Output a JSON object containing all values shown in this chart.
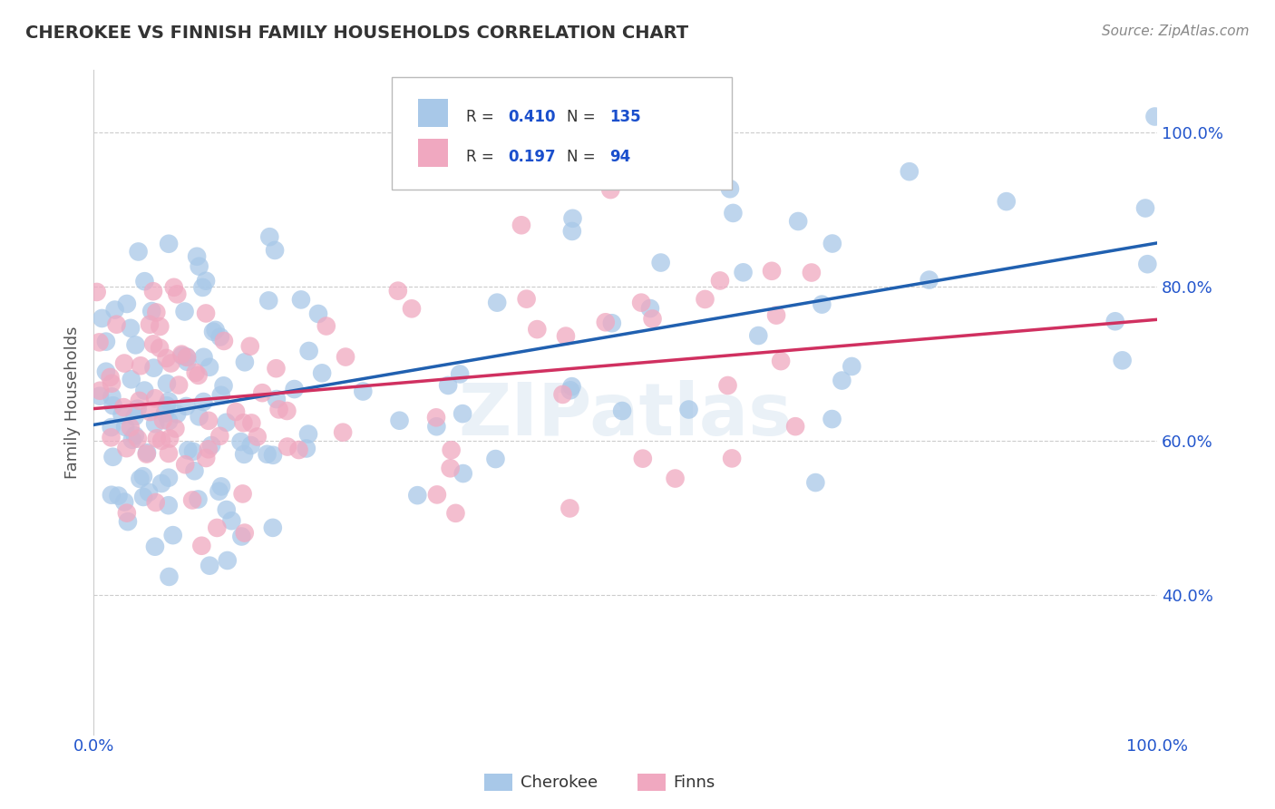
{
  "title": "CHEROKEE VS FINNISH FAMILY HOUSEHOLDS CORRELATION CHART",
  "source": "Source: ZipAtlas.com",
  "ylabel": "Family Households",
  "cherokee_R": 0.41,
  "cherokee_N": 135,
  "finns_R": 0.197,
  "finns_N": 94,
  "cherokee_color": "#a8c8e8",
  "cherokee_line_color": "#2060b0",
  "finns_color": "#f0a8c0",
  "finns_line_color": "#d03060",
  "background_color": "#ffffff",
  "grid_color": "#cccccc",
  "legend_R_color": "#1a4fcc",
  "xmin": 0.0,
  "xmax": 1.0,
  "ymin": 0.22,
  "ymax": 1.08,
  "yticks": [
    0.4,
    0.6,
    0.8,
    1.0
  ],
  "ytick_labels": [
    "40.0%",
    "60.0%",
    "80.0%",
    "100.0%"
  ],
  "watermark": "ZIPatlas",
  "cherokee_seed": 42,
  "finns_seed": 99
}
